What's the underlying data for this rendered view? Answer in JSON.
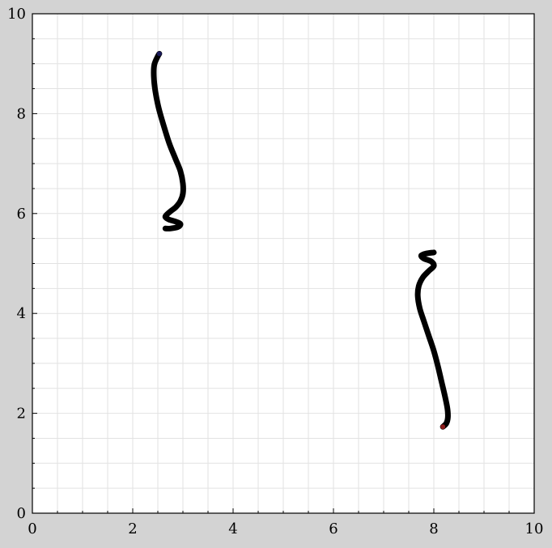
{
  "colors": {
    "figure_background": "#d3d3d3",
    "plot_background": "#ffffff",
    "grid": "#e2e2e2",
    "axes": "#000000",
    "stroke": "#000000",
    "start_marker_top": "#1a1a5a",
    "end_marker_bottom": "#8b1a1a"
  },
  "chart_data": {
    "type": "line",
    "title": "",
    "xlabel": "",
    "ylabel": "",
    "xlim": [
      0,
      10
    ],
    "ylim": [
      0,
      10
    ],
    "grid": true,
    "minor_ticks": true,
    "x_ticks": [
      0,
      2,
      4,
      6,
      8,
      10
    ],
    "y_ticks": [
      0,
      2,
      4,
      6,
      8,
      10
    ],
    "x_tick_labels": [
      "0",
      "2",
      "4",
      "6",
      "8",
      "10"
    ],
    "y_tick_labels": [
      "0",
      "2",
      "4",
      "6",
      "8",
      "10"
    ],
    "series": [
      {
        "x": [
          2.53,
          2.5,
          2.43,
          2.42,
          2.45,
          2.52,
          2.62,
          2.73,
          2.85,
          2.95,
          3.0,
          3.0,
          2.95,
          2.86,
          2.76,
          2.68,
          2.65,
          2.72,
          2.85,
          2.95,
          2.9,
          2.75,
          2.65
        ],
        "y": [
          9.2,
          9.15,
          8.98,
          8.75,
          8.45,
          8.1,
          7.75,
          7.4,
          7.1,
          6.85,
          6.6,
          6.4,
          6.25,
          6.13,
          6.05,
          5.98,
          5.93,
          5.88,
          5.84,
          5.79,
          5.73,
          5.7,
          5.7
        ]
      },
      {
        "x": [
          8.0,
          7.85,
          7.75,
          7.8,
          7.95,
          8.0,
          7.9,
          7.78,
          7.7,
          7.68,
          7.72,
          7.8,
          7.9,
          8.0,
          8.08,
          8.15,
          8.22,
          8.27,
          8.28,
          8.25,
          8.18
        ],
        "y": [
          5.22,
          5.2,
          5.16,
          5.1,
          5.04,
          4.95,
          4.85,
          4.72,
          4.55,
          4.35,
          4.1,
          3.85,
          3.55,
          3.25,
          2.95,
          2.65,
          2.35,
          2.1,
          1.92,
          1.8,
          1.73
        ]
      }
    ]
  }
}
